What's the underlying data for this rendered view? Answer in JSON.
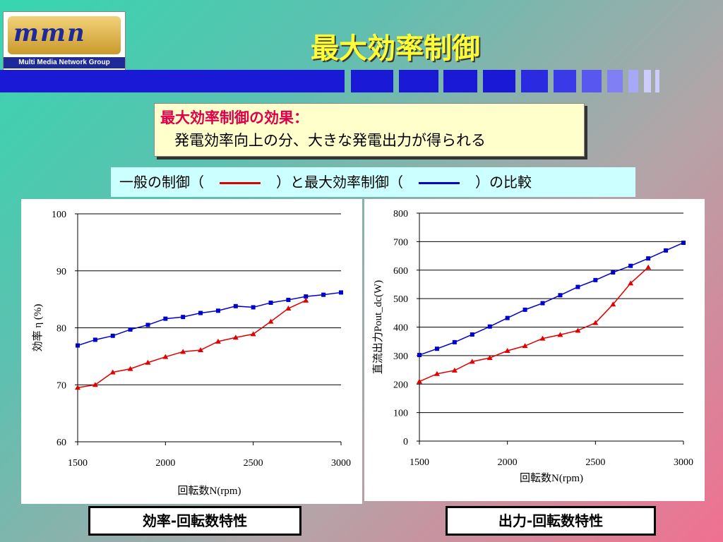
{
  "logo": {
    "mark_text": "mmn",
    "caption": "Multi Media Network Group"
  },
  "title": "最大効率制御",
  "colors": {
    "title": "#ffff33",
    "band": "#1a1ad6",
    "emphasis": "#e0004a",
    "general": "#e00000",
    "max_eff": "#0000cc"
  },
  "effect_box": {
    "heading": "最大効率制御の効果：",
    "body": "発電効率向上の分、大きな発電出力が得られる"
  },
  "comparison": {
    "prefix": "一般の制御（",
    "middle": "）と最大効率制御（",
    "suffix": "）の比較"
  },
  "captions": {
    "left": "効率-回転数特性",
    "right": "出力-回転数特性"
  },
  "chart_data": [
    {
      "type": "line",
      "title": "",
      "xlabel": "回転数N(rpm)",
      "ylabel": "効率 η (%)",
      "xlim": [
        1500,
        3000
      ],
      "ylim": [
        60,
        100
      ],
      "xticks": [
        1500,
        2000,
        2500,
        3000
      ],
      "yticks": [
        60,
        70,
        80,
        90,
        100
      ],
      "grid": "horizontal",
      "series": [
        {
          "color": "#0000cc",
          "marker": "square",
          "x": [
            1500,
            1600,
            1700,
            1800,
            1900,
            2000,
            2100,
            2200,
            2300,
            2400,
            2500,
            2600,
            2700,
            2800,
            2900,
            3000
          ],
          "y": [
            76.9,
            77.9,
            78.6,
            79.7,
            80.5,
            81.6,
            81.9,
            82.6,
            83.0,
            83.8,
            83.6,
            84.4,
            84.9,
            85.5,
            85.8,
            86.2
          ]
        },
        {
          "color": "#e00000",
          "marker": "triangle",
          "x": [
            1500,
            1600,
            1700,
            1800,
            1900,
            2000,
            2100,
            2200,
            2300,
            2400,
            2500,
            2600,
            2700,
            2800
          ],
          "y": [
            69.5,
            70.0,
            72.2,
            72.8,
            73.9,
            74.9,
            75.8,
            76.1,
            77.6,
            78.3,
            78.9,
            81.1,
            83.4,
            84.8
          ]
        }
      ]
    },
    {
      "type": "line",
      "title": "",
      "xlabel": "回転数N(rpm)",
      "ylabel": "直流出力Pout_dc(W)",
      "xlim": [
        1500,
        3000
      ],
      "ylim": [
        0,
        800
      ],
      "xticks": [
        1500,
        2000,
        2500,
        3000
      ],
      "yticks": [
        0,
        100,
        200,
        300,
        400,
        500,
        600,
        700,
        800
      ],
      "grid": "horizontal",
      "series": [
        {
          "color": "#0000cc",
          "marker": "square",
          "x": [
            1500,
            1600,
            1700,
            1800,
            1900,
            2000,
            2100,
            2200,
            2300,
            2400,
            2500,
            2600,
            2700,
            2800,
            2900,
            3000
          ],
          "y": [
            302,
            324,
            347,
            374,
            402,
            432,
            461,
            484,
            512,
            541,
            565,
            592,
            615,
            641,
            669,
            696
          ]
        },
        {
          "color": "#e00000",
          "marker": "triangle",
          "x": [
            1500,
            1600,
            1700,
            1800,
            1900,
            2000,
            2100,
            2200,
            2300,
            2400,
            2500,
            2600,
            2700,
            2800
          ],
          "y": [
            209,
            236,
            248,
            279,
            292,
            317,
            334,
            360,
            373,
            388,
            415,
            480,
            554,
            610
          ]
        }
      ]
    }
  ]
}
